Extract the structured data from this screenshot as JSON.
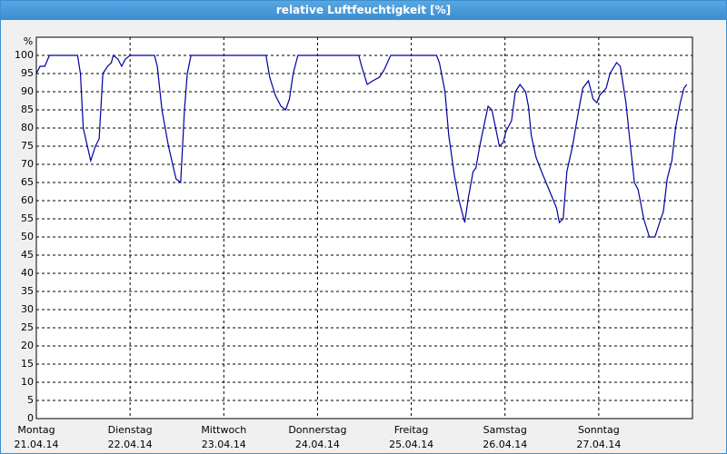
{
  "chart_data": {
    "type": "line",
    "title": "relative Luftfeuchtigkeit [%]",
    "y_unit": "%",
    "xlim": [
      0,
      7
    ],
    "ylim": [
      0,
      105
    ],
    "yticks": [
      0,
      5,
      10,
      15,
      20,
      25,
      30,
      35,
      40,
      45,
      50,
      55,
      60,
      65,
      70,
      75,
      80,
      85,
      90,
      95,
      100
    ],
    "xticks": [
      {
        "value": 0,
        "label": "Montag",
        "date": "21.04.14"
      },
      {
        "value": 1,
        "label": "Dienstag",
        "date": "22.04.14"
      },
      {
        "value": 2,
        "label": "Mittwoch",
        "date": "23.04.14"
      },
      {
        "value": 3,
        "label": "Donnerstag",
        "date": "24.04.14"
      },
      {
        "value": 4,
        "label": "Freitag",
        "date": "25.04.14"
      },
      {
        "value": 5,
        "label": "Samstag",
        "date": "26.04.14"
      },
      {
        "value": 6,
        "label": "Sonntag",
        "date": "27.04.14"
      },
      {
        "value": 7,
        "label": null,
        "date": null
      }
    ],
    "grid": true,
    "series": [
      {
        "name": null,
        "color": "#0000a0",
        "x": [
          0,
          0.04,
          0.09,
          0.14,
          0.44,
          0.47,
          0.5,
          0.58,
          0.63,
          0.67,
          0.71,
          0.76,
          0.8,
          0.82,
          0.87,
          0.91,
          0.95,
          1.0,
          1.26,
          1.29,
          1.34,
          1.41,
          1.49,
          1.54,
          1.58,
          1.61,
          1.65,
          2.45,
          2.49,
          2.55,
          2.61,
          2.66,
          2.7,
          2.74,
          2.79,
          3.44,
          3.47,
          3.53,
          3.59,
          3.66,
          3.71,
          3.78,
          4.27,
          4.3,
          4.36,
          4.4,
          4.46,
          4.51,
          4.57,
          4.61,
          4.66,
          4.69,
          4.73,
          4.77,
          4.82,
          4.86,
          4.9,
          4.94,
          4.98,
          5.01,
          5.07,
          5.11,
          5.16,
          5.22,
          5.25,
          5.28,
          5.33,
          5.39,
          5.47,
          5.55,
          5.58,
          5.62,
          5.66,
          5.72,
          5.78,
          5.83,
          5.89,
          5.94,
          5.98,
          6.01,
          6.08,
          6.12,
          6.19,
          6.23,
          6.29,
          6.33,
          6.38,
          6.42,
          6.48,
          6.54,
          6.6,
          6.65,
          6.69,
          6.73,
          6.78,
          6.82,
          6.87,
          6.91,
          6.94
        ],
        "values": [
          95,
          97,
          97,
          100,
          100,
          95,
          80,
          71,
          75,
          77,
          95,
          97,
          98,
          100,
          99,
          97,
          99,
          100,
          100,
          97,
          85,
          75,
          66,
          65,
          85,
          95,
          100,
          100,
          94,
          89,
          86,
          85,
          88,
          95,
          100,
          100,
          97,
          92,
          93,
          94,
          96,
          100,
          100,
          98,
          90,
          78,
          67,
          60,
          54,
          61,
          68,
          69,
          75,
          80,
          86,
          85,
          80,
          75,
          76,
          79,
          82,
          90,
          92,
          90,
          86,
          78,
          72,
          68,
          63,
          58,
          54,
          55,
          68,
          75,
          84,
          91,
          93,
          88,
          87,
          89,
          91,
          95,
          98,
          97,
          87,
          77,
          65,
          63,
          55,
          50,
          50,
          54,
          57,
          66,
          71,
          80,
          87,
          91,
          92
        ]
      }
    ]
  }
}
